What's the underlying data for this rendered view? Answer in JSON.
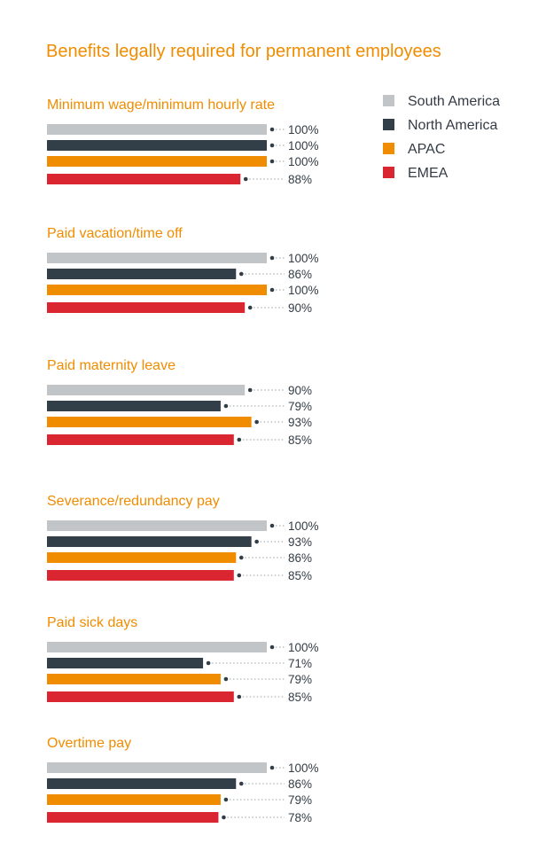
{
  "chart_data": {
    "type": "bar",
    "orientation": "horizontal",
    "title": "Benefits legally required for permanent employees",
    "categories": [
      "Minimum wage/minimum hourly rate",
      "Paid vacation/time off",
      "Paid maternity leave",
      "Severance/redundancy pay",
      "Paid sick days",
      "Overtime pay"
    ],
    "series": [
      {
        "name": "South America",
        "color": "#C2C5C7",
        "values": [
          100,
          100,
          90,
          100,
          100,
          100
        ]
      },
      {
        "name": "North America",
        "color": "#323E48",
        "values": [
          100,
          86,
          79,
          93,
          71,
          86
        ]
      },
      {
        "name": "APAC",
        "color": "#F08C00",
        "values": [
          100,
          100,
          93,
          86,
          79,
          79
        ]
      },
      {
        "name": "EMEA",
        "color": "#DA2630",
        "values": [
          88,
          90,
          85,
          85,
          85,
          78
        ]
      }
    ],
    "value_suffix": "%",
    "xlim": [
      0,
      100
    ],
    "legend": "top-right",
    "grid": false
  }
}
